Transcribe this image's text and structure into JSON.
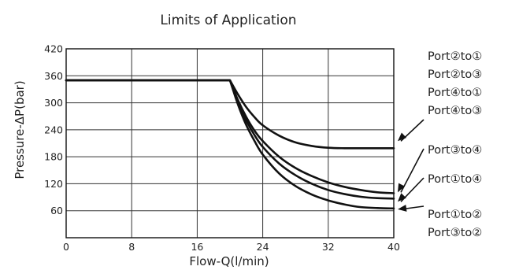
{
  "chart_data": {
    "type": "line",
    "title": "Limits of Application",
    "xlabel": "Flow-Q(l/min)",
    "ylabel": "Pressure-ΔP(bar)",
    "xlim": [
      0,
      40
    ],
    "ylim": [
      0,
      420
    ],
    "xticks": [
      0,
      8,
      16,
      24,
      32,
      40
    ],
    "yticks": [
      60,
      120,
      180,
      240,
      300,
      360,
      420
    ],
    "grid": true,
    "series": [
      {
        "x": [
          0,
          20,
          21,
          22,
          23,
          24,
          26,
          28,
          30,
          32,
          34,
          36,
          38,
          40
        ],
        "y": [
          350,
          350,
          318,
          290,
          268,
          250,
          227,
          212,
          204,
          200,
          199,
          199,
          199,
          199
        ]
      },
      {
        "x": [
          0,
          20,
          21,
          22,
          23,
          24,
          26,
          28,
          30,
          32,
          34,
          36,
          38,
          40
        ],
        "y": [
          350,
          350,
          305,
          268,
          238,
          215,
          180,
          155,
          137,
          123,
          113,
          106,
          101,
          99
        ]
      },
      {
        "x": [
          0,
          20,
          21,
          22,
          23,
          24,
          26,
          28,
          30,
          32,
          34,
          36,
          38,
          40
        ],
        "y": [
          350,
          350,
          300,
          260,
          228,
          202,
          165,
          139,
          120,
          106,
          97,
          91,
          88,
          87
        ]
      },
      {
        "x": [
          0,
          20,
          21,
          22,
          23,
          24,
          26,
          28,
          30,
          32,
          34,
          36,
          38,
          40
        ],
        "y": [
          350,
          350,
          295,
          250,
          215,
          185,
          143,
          115,
          96,
          83,
          74,
          68,
          66,
          65
        ]
      }
    ],
    "legend_groups": [
      {
        "labels": [
          "Port②to①",
          "Port②to③",
          "Port④to①",
          "Port④to③"
        ],
        "series_index": 0
      },
      {
        "labels": [
          "Port③to④"
        ],
        "series_index": 1
      },
      {
        "labels": [
          "Port①to④"
        ],
        "series_index": 2
      },
      {
        "labels": [
          "Port①to②",
          "Port③to②"
        ],
        "series_index": 3
      }
    ]
  }
}
